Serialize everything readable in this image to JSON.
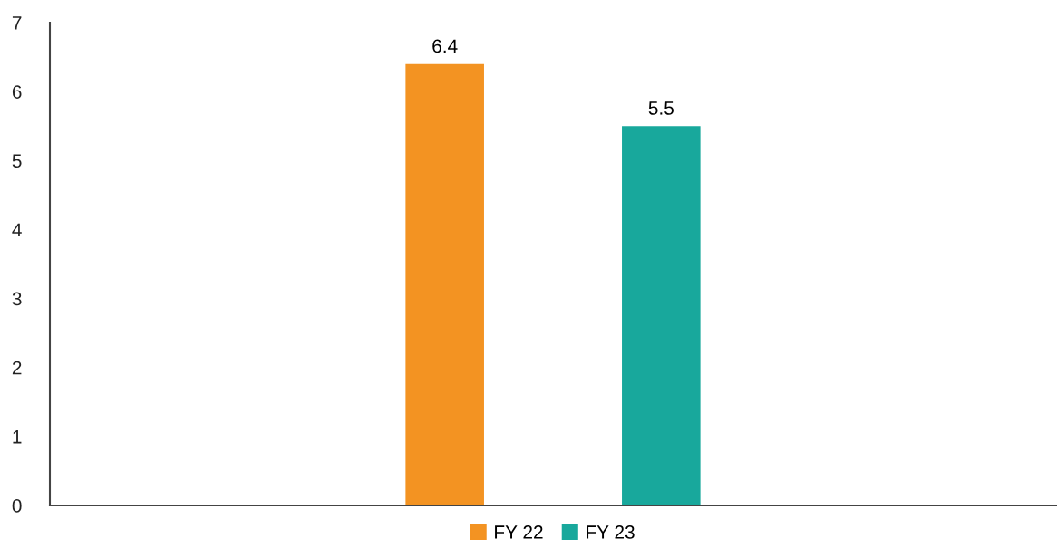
{
  "chart_data": {
    "type": "bar",
    "categories": [
      null
    ],
    "series": [
      {
        "name": "FY 22",
        "color": "#f39322",
        "values": [
          6.4
        ]
      },
      {
        "name": "FY 23",
        "color": "#18a89c",
        "values": [
          5.5
        ]
      }
    ],
    "ylim": [
      0,
      7
    ],
    "yticks": [
      0,
      1,
      2,
      3,
      4,
      5,
      6,
      7
    ],
    "grid": false,
    "legend": "bottom",
    "data_labels": true
  }
}
